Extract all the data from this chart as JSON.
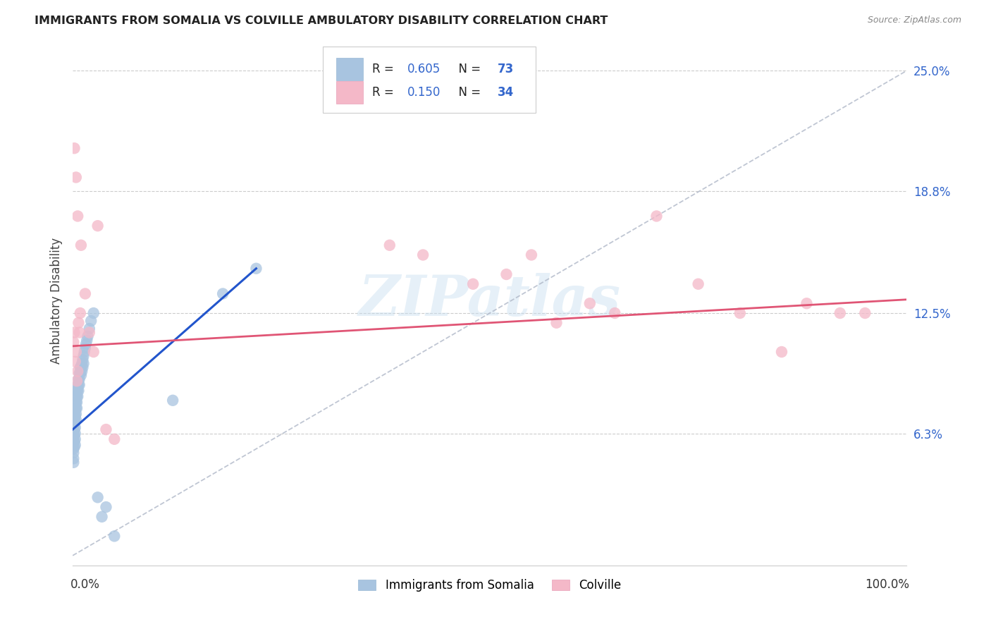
{
  "title": "IMMIGRANTS FROM SOMALIA VS COLVILLE AMBULATORY DISABILITY CORRELATION CHART",
  "source": "Source: ZipAtlas.com",
  "ylabel": "Ambulatory Disability",
  "xlim": [
    0.0,
    1.0
  ],
  "ylim": [
    -0.005,
    0.268
  ],
  "legend_somalia_r": "0.605",
  "legend_somalia_n": "73",
  "legend_colville_r": "0.150",
  "legend_colville_n": "34",
  "somalia_color": "#a8c4e0",
  "colville_color": "#f4b8c8",
  "somalia_line_color": "#2255cc",
  "colville_line_color": "#e05575",
  "watermark": "ZIPatlas",
  "ytick_vals": [
    0.063,
    0.125,
    0.188,
    0.25
  ],
  "ytick_labels": [
    "6.3%",
    "12.5%",
    "18.8%",
    "25.0%"
  ],
  "somalia_x": [
    0.0005,
    0.001,
    0.001,
    0.001,
    0.001,
    0.001,
    0.001,
    0.001,
    0.001,
    0.001,
    0.0015,
    0.0015,
    0.0015,
    0.002,
    0.002,
    0.002,
    0.002,
    0.002,
    0.002,
    0.002,
    0.0025,
    0.0025,
    0.003,
    0.003,
    0.003,
    0.003,
    0.003,
    0.003,
    0.003,
    0.003,
    0.004,
    0.004,
    0.004,
    0.004,
    0.004,
    0.005,
    0.005,
    0.005,
    0.005,
    0.006,
    0.006,
    0.006,
    0.007,
    0.007,
    0.007,
    0.008,
    0.008,
    0.008,
    0.009,
    0.009,
    0.01,
    0.01,
    0.011,
    0.011,
    0.012,
    0.012,
    0.013,
    0.013,
    0.014,
    0.015,
    0.016,
    0.017,
    0.018,
    0.02,
    0.022,
    0.025,
    0.03,
    0.035,
    0.04,
    0.05,
    0.12,
    0.18,
    0.22
  ],
  "somalia_y": [
    0.072,
    0.068,
    0.065,
    0.062,
    0.06,
    0.058,
    0.055,
    0.053,
    0.05,
    0.048,
    0.071,
    0.067,
    0.063,
    0.075,
    0.071,
    0.068,
    0.065,
    0.062,
    0.059,
    0.056,
    0.073,
    0.069,
    0.078,
    0.075,
    0.072,
    0.069,
    0.066,
    0.063,
    0.06,
    0.057,
    0.082,
    0.079,
    0.076,
    0.073,
    0.07,
    0.085,
    0.082,
    0.079,
    0.076,
    0.088,
    0.085,
    0.082,
    0.091,
    0.088,
    0.085,
    0.094,
    0.091,
    0.088,
    0.097,
    0.094,
    0.097,
    0.093,
    0.099,
    0.095,
    0.101,
    0.097,
    0.103,
    0.099,
    0.105,
    0.107,
    0.109,
    0.111,
    0.113,
    0.117,
    0.121,
    0.125,
    0.03,
    0.02,
    0.025,
    0.01,
    0.08,
    0.135,
    0.148
  ],
  "colville_x": [
    0.001,
    0.002,
    0.003,
    0.004,
    0.005,
    0.006,
    0.007,
    0.008,
    0.009,
    0.002,
    0.004,
    0.006,
    0.01,
    0.015,
    0.02,
    0.025,
    0.03,
    0.04,
    0.05,
    0.38,
    0.42,
    0.48,
    0.52,
    0.55,
    0.58,
    0.62,
    0.65,
    0.7,
    0.75,
    0.8,
    0.85,
    0.88,
    0.92,
    0.95
  ],
  "colville_y": [
    0.11,
    0.115,
    0.1,
    0.105,
    0.09,
    0.095,
    0.12,
    0.115,
    0.125,
    0.21,
    0.195,
    0.175,
    0.16,
    0.135,
    0.115,
    0.105,
    0.17,
    0.065,
    0.06,
    0.16,
    0.155,
    0.14,
    0.145,
    0.155,
    0.12,
    0.13,
    0.125,
    0.175,
    0.14,
    0.125,
    0.105,
    0.13,
    0.125,
    0.125
  ],
  "somalia_line_x": [
    0.0,
    0.22
  ],
  "somalia_line_y": [
    0.065,
    0.148
  ],
  "colville_line_x": [
    0.0,
    1.0
  ],
  "colville_line_y": [
    0.108,
    0.132
  ],
  "ref_line_x": [
    0.0,
    1.0
  ],
  "ref_line_y": [
    0.0,
    0.25
  ]
}
